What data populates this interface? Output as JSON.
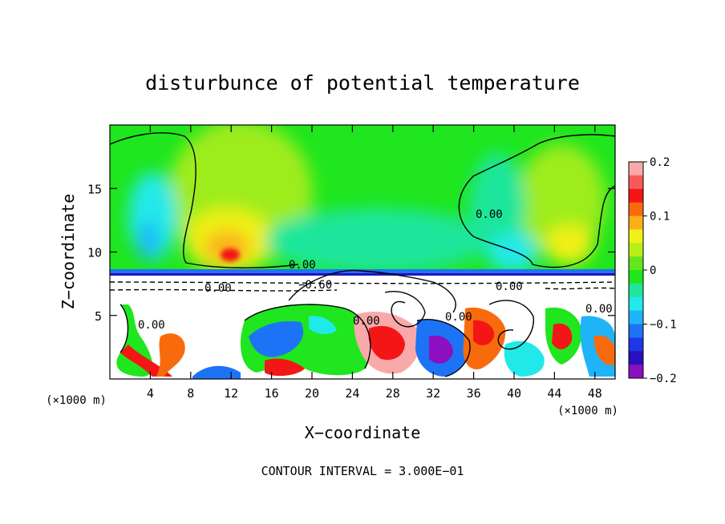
{
  "chart_data": {
    "type": "heatmap",
    "title": "disturbunce of potential temperature",
    "xlabel": "X−coordinate",
    "ylabel": "Z−coordinate",
    "x_unit_label": "(×1000 m)",
    "y_unit_label": "(×1000 m)",
    "x_range": [
      0,
      50
    ],
    "y_range": [
      0,
      20
    ],
    "x_ticks": [
      4,
      8,
      12,
      16,
      20,
      24,
      28,
      32,
      36,
      40,
      44,
      48
    ],
    "y_ticks": [
      5,
      10,
      15
    ],
    "colorbar": {
      "range": [
        -0.2,
        0.2
      ],
      "tick_labels": [
        "0.2",
        "0.1",
        "0",
        "−0.1",
        "−0.2"
      ],
      "tick_values": [
        0.2,
        0.1,
        0,
        -0.1,
        -0.2
      ],
      "colors": [
        "#f9a9a9",
        "#f85a5a",
        "#f41616",
        "#f86b0d",
        "#fbb01a",
        "#f0f019",
        "#b8ef19",
        "#64e61e",
        "#1fe61e",
        "#1fe69b",
        "#21e9e9",
        "#1fb4f8",
        "#1d73f5",
        "#1f37e8",
        "#2610bf",
        "#8c10bf"
      ]
    },
    "contour_labels": [
      "0.00",
      "0.00",
      "−0.60",
      "0.00",
      "0.00",
      "0.00",
      "0.00",
      "0.00",
      "0.00"
    ],
    "contour_interval_text": "CONTOUR INTERVAL = 3.000E−01"
  }
}
